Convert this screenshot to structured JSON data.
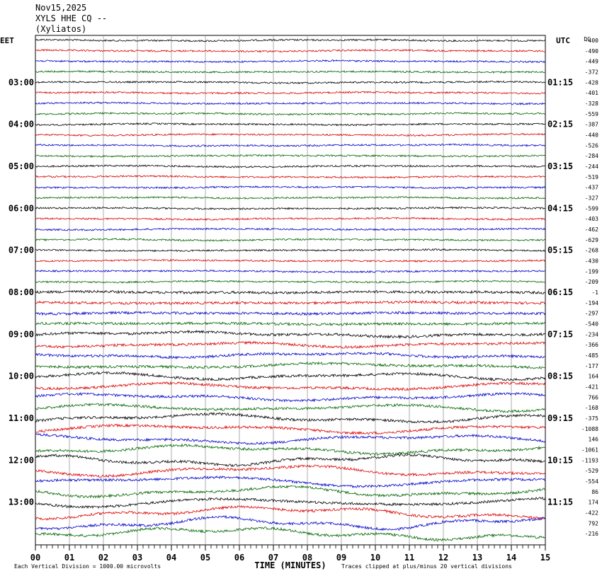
{
  "header": {
    "date": "Nov15,2025",
    "station": "XYLS HHE CQ --",
    "location": "(Xyliatos)"
  },
  "chart_data": {
    "type": "line",
    "title": "Nov15,2025",
    "left_tz": "EET",
    "right_tz": "UTC",
    "dc_label": "DC",
    "xlabel": "TIME (MINUTES)",
    "xlim": [
      0,
      15
    ],
    "x_ticks": [
      "00",
      "01",
      "02",
      "03",
      "04",
      "05",
      "06",
      "07",
      "08",
      "09",
      "10",
      "11",
      "12",
      "13",
      "14",
      "15"
    ],
    "left_hour_labels": [
      "03:00",
      "04:00",
      "05:00",
      "06:00",
      "07:00",
      "08:00",
      "09:00",
      "10:00",
      "11:00",
      "12:00",
      "13:00"
    ],
    "right_hour_labels": [
      "01:15",
      "02:15",
      "03:15",
      "04:15",
      "05:15",
      "06:15",
      "07:15",
      "08:15",
      "09:15",
      "10:15",
      "11:15"
    ],
    "trace_colors": [
      "#000000",
      "#dd0000",
      "#0000cc",
      "#006600"
    ],
    "trace_count": 48,
    "dc_offsets": [
      -400,
      -490,
      -449,
      -372,
      -428,
      -401,
      -328,
      -559,
      -387,
      -440,
      -526,
      -284,
      -244,
      -519,
      -437,
      -327,
      -599,
      -403,
      -462,
      -629,
      -268,
      -430,
      -199,
      -209,
      -1,
      -194,
      -297,
      -540,
      -234,
      -366,
      -485,
      -177,
      164,
      -421,
      766,
      -168,
      -375,
      -1088,
      146,
      -1061,
      -1193,
      -529,
      -554,
      86,
      174,
      -422,
      792,
      -216
    ],
    "footer_left": "Each Vertical Division = 1000.00 microvolts",
    "footer_right": "Traces clipped at plus/minus 20 vertical divisions"
  }
}
